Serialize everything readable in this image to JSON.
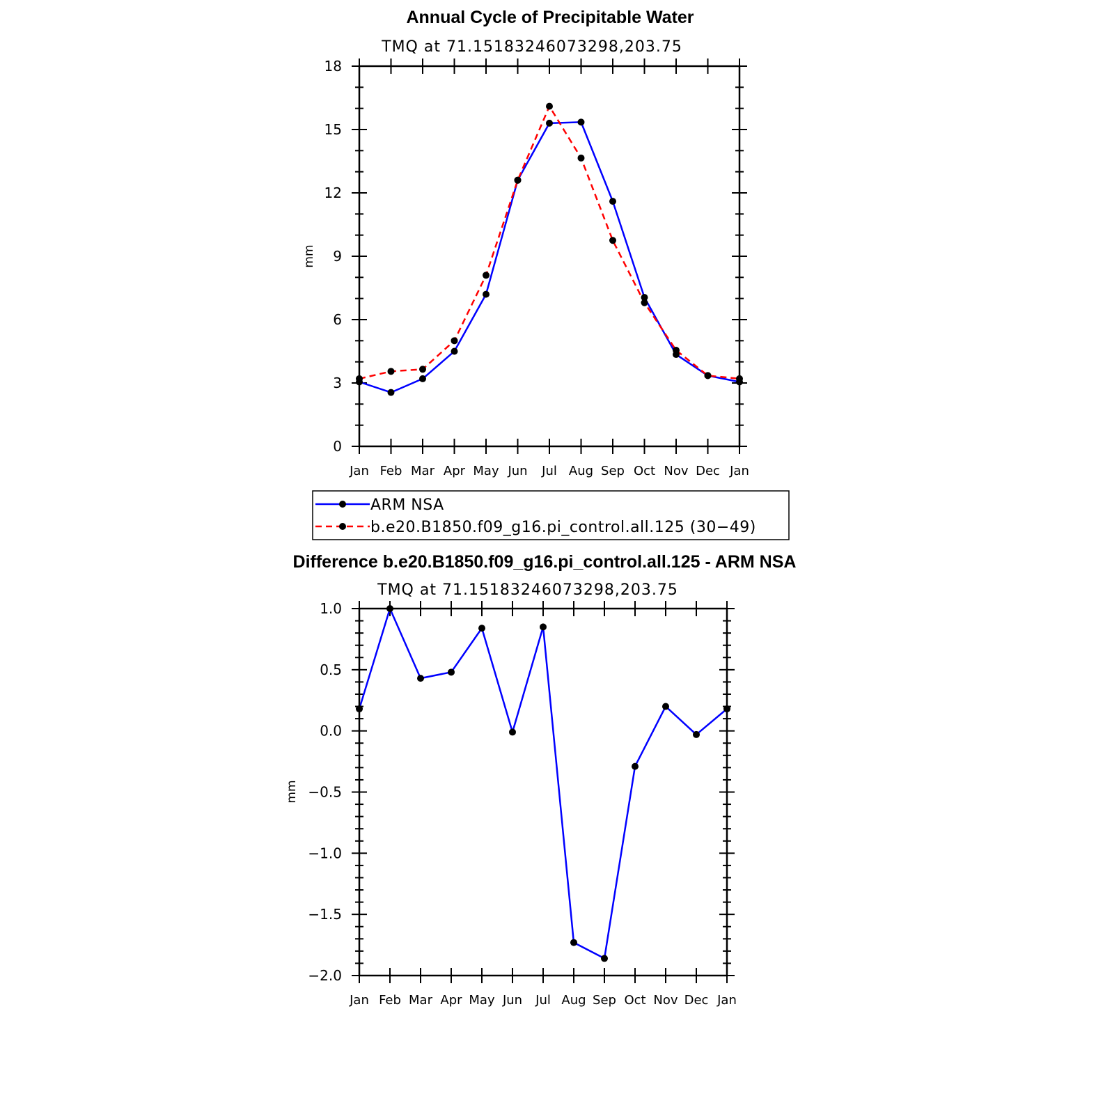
{
  "chart_data": [
    {
      "type": "line",
      "title": "Annual Cycle of Precipitable Water",
      "subtitle": "TMQ at 71.15183246073298,203.75",
      "xlabel": "",
      "ylabel": "mm",
      "categories": [
        "Jan",
        "Feb",
        "Mar",
        "Apr",
        "May",
        "Jun",
        "Jul",
        "Aug",
        "Sep",
        "Oct",
        "Nov",
        "Dec",
        "Jan"
      ],
      "ylim": [
        0,
        18
      ],
      "yticks": [
        0,
        3,
        6,
        9,
        12,
        15,
        18
      ],
      "ytick_labels": [
        "0",
        "3",
        "6",
        "9",
        "12",
        "15",
        "18"
      ],
      "series": [
        {
          "name": "ARM NSA",
          "color": "#0000ff",
          "dash": "solid",
          "values": [
            3.05,
            2.55,
            3.2,
            4.5,
            7.2,
            12.6,
            15.3,
            15.35,
            11.6,
            7.05,
            4.35,
            3.35,
            3.05
          ]
        },
        {
          "name": "b.e20.B1850.f09_g16.pi_control.all.125 (30−49)",
          "color": "#ff0000",
          "dash": "dashed",
          "values": [
            3.2,
            3.55,
            3.65,
            5.0,
            8.1,
            12.6,
            16.1,
            13.65,
            9.75,
            6.8,
            4.55,
            3.35,
            3.2
          ]
        }
      ],
      "legend": "below"
    },
    {
      "type": "line",
      "title": "Difference b.e20.B1850.f09_g16.pi_control.all.125 - ARM NSA",
      "subtitle": "TMQ at 71.15183246073298,203.75",
      "xlabel": "",
      "ylabel": "mm",
      "categories": [
        "Jan",
        "Feb",
        "Mar",
        "Apr",
        "May",
        "Jun",
        "Jul",
        "Aug",
        "Sep",
        "Oct",
        "Nov",
        "Dec",
        "Jan"
      ],
      "ylim": [
        -2.0,
        1.0
      ],
      "yticks": [
        -2.0,
        -1.5,
        -1.0,
        -0.5,
        0.0,
        0.5,
        1.0
      ],
      "ytick_labels": [
        "−2.0",
        "−1.5",
        "−1.0",
        "−0.5",
        "0.0",
        "0.5",
        "1.0"
      ],
      "series": [
        {
          "name": "Difference",
          "color": "#0000ff",
          "dash": "solid",
          "values": [
            0.18,
            1.0,
            0.43,
            0.48,
            0.84,
            -0.01,
            0.85,
            -1.73,
            -1.86,
            -0.29,
            0.2,
            -0.03,
            0.18
          ]
        }
      ]
    }
  ]
}
